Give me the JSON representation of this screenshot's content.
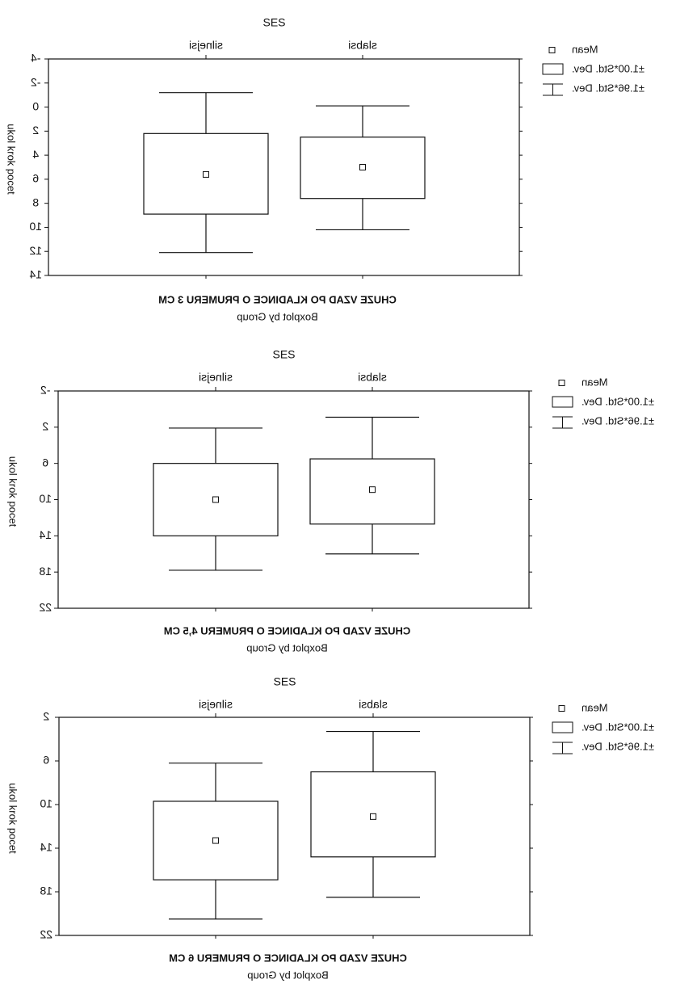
{
  "chart_data": [
    {
      "type": "boxplot",
      "group_label": "SES",
      "categories": [
        "silnejsi",
        "slabsi"
      ],
      "boxes": [
        {
          "mean": 5.6,
          "box": [
            2.2,
            8.9
          ],
          "whiskers": [
            -1.2,
            12.1
          ]
        },
        {
          "mean": 5.0,
          "box": [
            2.5,
            7.6
          ],
          "whiskers": [
            -0.1,
            10.2
          ]
        }
      ],
      "ylabel": "ukol krok pocet",
      "ylim": [
        -4,
        14
      ],
      "yticks": [
        "-4",
        "-2",
        "0",
        "2",
        "4",
        "6",
        "8",
        "10",
        "12",
        "14"
      ],
      "title": "CHUZE VZAD PO KLADINCE O PRUMERU 3 CM",
      "subtitle": "Boxplot by Group",
      "legend": [
        "Mean",
        "±1.00*Std. Dev.",
        "±1.96*Std. Dev."
      ],
      "grid": false,
      "legend_position": "right"
    },
    {
      "type": "boxplot",
      "group_label": "SES",
      "categories": [
        "silnejsi",
        "slabsi"
      ],
      "boxes": [
        {
          "mean": 10.0,
          "box": [
            6.0,
            14.0
          ],
          "whiskers": [
            2.1,
            17.8
          ]
        },
        {
          "mean": 8.9,
          "box": [
            5.5,
            12.7
          ],
          "whiskers": [
            0.9,
            16.0
          ]
        }
      ],
      "ylabel": "ukol krok pocet",
      "ylim": [
        -2,
        22
      ],
      "yticks": [
        "-2",
        "2",
        "6",
        "10",
        "14",
        "18",
        "22"
      ],
      "title": "CHUZE VZAD PO KLADINCE O PRUMERU 4,5 CM",
      "subtitle": "Boxplot by Group",
      "legend": [
        "Mean",
        "±1.00*Std. Dev.",
        "±1.96*Std. Dev."
      ],
      "grid": false,
      "legend_position": "right"
    },
    {
      "type": "boxplot",
      "group_label": "SES",
      "categories": [
        "silnejsi",
        "slabsi"
      ],
      "boxes": [
        {
          "mean": 13.3,
          "box": [
            9.7,
            16.9
          ],
          "whiskers": [
            6.2,
            20.5
          ]
        },
        {
          "mean": 11.1,
          "box": [
            7.0,
            14.8
          ],
          "whiskers": [
            3.3,
            18.5
          ]
        }
      ],
      "ylabel": "ukol krok pocet",
      "ylim": [
        2,
        22
      ],
      "yticks": [
        "2",
        "6",
        "10",
        "14",
        "18",
        "22"
      ],
      "title": "CHUZE VZAD PO KLADINCE O PRUMERU 6 CM",
      "subtitle": "Boxplot by Group",
      "legend": [
        "Mean",
        "±1.00*Std. Dev.",
        "±1.96*Std. Dev."
      ],
      "grid": false,
      "legend_position": "right"
    }
  ]
}
